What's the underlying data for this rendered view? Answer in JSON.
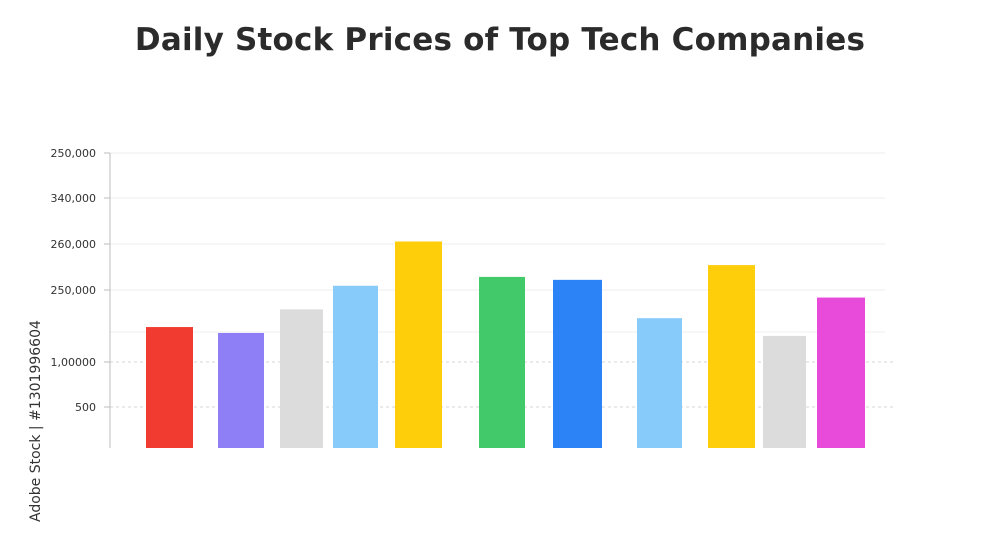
{
  "chart_data": {
    "type": "bar",
    "title": "Daily Stock Prices of Top Tech Companies",
    "xlabel": "",
    "ylabel": "",
    "y_tick_labels": [
      "250,000",
      "340,000",
      "260,000",
      "250,000",
      "1,00000",
      "500"
    ],
    "values": [
      41,
      39,
      47,
      55,
      70,
      58,
      57,
      44,
      62,
      38,
      51
    ],
    "colors": [
      "#f23b30",
      "#8e7ff7",
      "#dcdcdc",
      "#87cbfb",
      "#ffce0a",
      "#41c96a",
      "#2c83f5",
      "#87cbfb",
      "#ffce0a",
      "#dcdcdc",
      "#e84bd9"
    ],
    "ylim": [
      0,
      100
    ],
    "grid": true
  },
  "watermark": {
    "text": "Adobe Stock | #1301996604"
  }
}
